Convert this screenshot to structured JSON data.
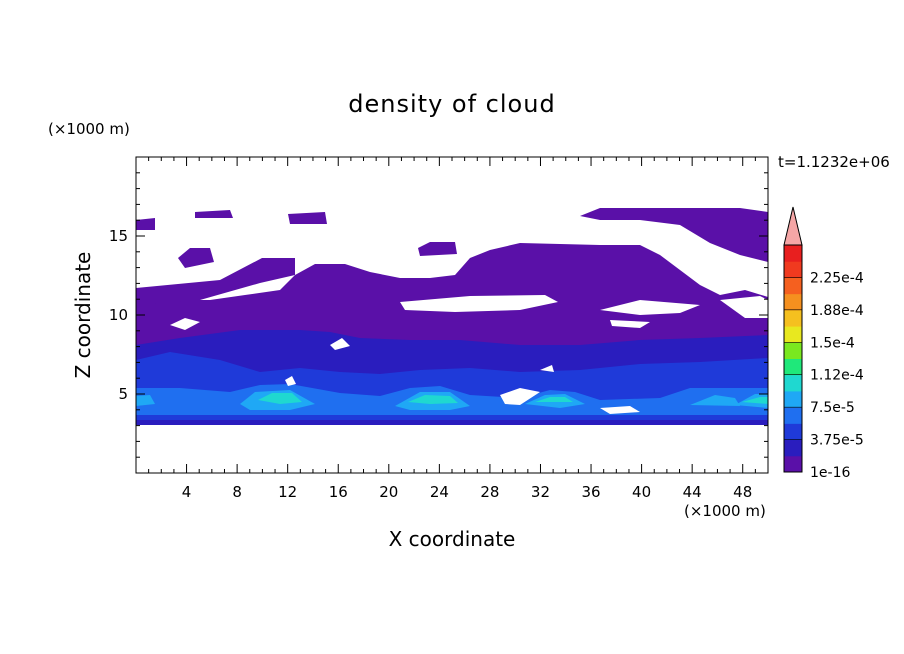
{
  "chart_data": {
    "type": "heatmap",
    "title": "density of cloud",
    "xlabel": "X coordinate",
    "ylabel": "Z coordinate",
    "x_unit": "(×1000 m)",
    "y_unit": "(×1000 m)",
    "time_label": "t=1.1232e+06",
    "xlim": [
      0,
      50
    ],
    "ylim": [
      0,
      20
    ],
    "x_ticks": [
      "4",
      "8",
      "12",
      "16",
      "20",
      "24",
      "28",
      "32",
      "36",
      "40",
      "44",
      "48"
    ],
    "y_ticks": [
      "5",
      "10",
      "15"
    ],
    "colorbar": {
      "levels": [
        "1e-16",
        "3.75e-5",
        "7.5e-5",
        "1.12e-4",
        "1.5e-4",
        "1.88e-4",
        "2.25e-4"
      ],
      "colors": [
        "#5a10a8",
        "#2a1dbe",
        "#1f3ad9",
        "#1f6ff0",
        "#1fa8f5",
        "#1fd8d0",
        "#1fe87a",
        "#7ae81f",
        "#e8e81f",
        "#f5c01f",
        "#f5901f",
        "#f5601f",
        "#f03a1f",
        "#e81f1f"
      ],
      "extend_color": "#f5a6a6"
    },
    "regions": [
      {
        "level": "1e-16",
        "description": "main cloud layer from about z=3.3 to z=12"
      },
      {
        "level": "3.75e-5",
        "description": "denser band near z=4-8"
      },
      {
        "level": "1.12e-4",
        "description": "cores near z=4-5 at x≈10,22,33,47"
      }
    ]
  }
}
